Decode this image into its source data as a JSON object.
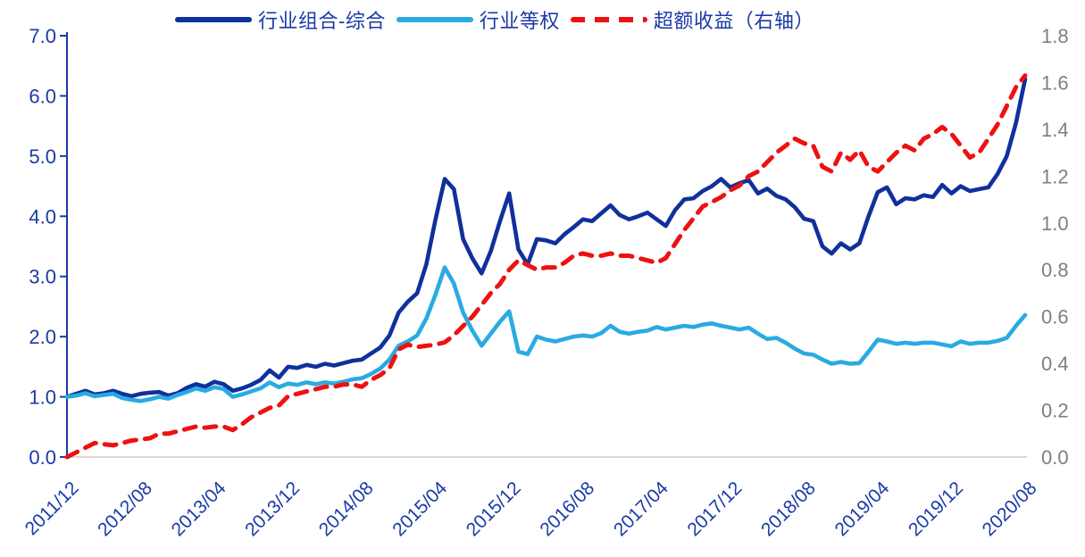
{
  "colors": {
    "series_composite": "#10309c",
    "series_equal_weight": "#29abe2",
    "series_excess_return": "#ee1111",
    "axis_text_blue": "#1b3aa6",
    "axis_line_blue": "#1b3aa6",
    "right_axis_text_gray": "#7f7f7f",
    "baseline_gray": "#d9d9d9",
    "background": "#ffffff"
  },
  "legend": {
    "items": [
      {
        "label": "行业组合-综合",
        "style": "solid"
      },
      {
        "label": "行业等权",
        "style": "solid"
      },
      {
        "label": "超额收益（右轴）",
        "style": "dashed"
      }
    ]
  },
  "chart_data": {
    "type": "line",
    "title": "",
    "xlabel": "",
    "ylabel_left": "",
    "ylabel_right": "",
    "grid": false,
    "legend_position": "top",
    "x_frequency": "monthly",
    "x_start": "2011/12",
    "x_end": "2020/08",
    "x_tick_labels": [
      "2011/12",
      "2012/08",
      "2013/04",
      "2013/12",
      "2014/08",
      "2015/04",
      "2015/12",
      "2016/08",
      "2017/04",
      "2017/12",
      "2018/08",
      "2019/04",
      "2019/12",
      "2020/08"
    ],
    "x_tick_indices": [
      0,
      8,
      16,
      24,
      32,
      40,
      48,
      56,
      64,
      72,
      80,
      88,
      96,
      104
    ],
    "left_axis": {
      "min": 0.0,
      "max": 7.0,
      "step": 1.0,
      "tick_labels": [
        "0.0",
        "1.0",
        "2.0",
        "3.0",
        "4.0",
        "5.0",
        "6.0",
        "7.0"
      ]
    },
    "right_axis": {
      "min": 0.0,
      "max": 1.8,
      "step": 0.2,
      "tick_labels": [
        "0.0",
        "0.2",
        "0.4",
        "0.6",
        "0.8",
        "1.0",
        "1.2",
        "1.4",
        "1.6",
        "1.8"
      ]
    },
    "series": [
      {
        "name": "行业组合-综合",
        "axis": "left",
        "color": "#10309c",
        "style": "solid",
        "values": [
          1.0,
          1.05,
          1.1,
          1.04,
          1.06,
          1.1,
          1.05,
          1.01,
          1.05,
          1.07,
          1.08,
          1.02,
          1.06,
          1.15,
          1.21,
          1.17,
          1.25,
          1.21,
          1.1,
          1.14,
          1.2,
          1.28,
          1.44,
          1.32,
          1.5,
          1.48,
          1.53,
          1.5,
          1.55,
          1.52,
          1.56,
          1.6,
          1.62,
          1.72,
          1.82,
          2.02,
          2.4,
          2.58,
          2.72,
          3.2,
          3.95,
          4.62,
          4.45,
          3.62,
          3.3,
          3.05,
          3.42,
          3.92,
          4.38,
          3.45,
          3.2,
          3.62,
          3.6,
          3.55,
          3.7,
          3.82,
          3.95,
          3.92,
          4.05,
          4.18,
          4.02,
          3.95,
          4.0,
          4.06,
          3.95,
          3.84,
          4.1,
          4.28,
          4.3,
          4.42,
          4.5,
          4.62,
          4.48,
          4.55,
          4.6,
          4.38,
          4.46,
          4.34,
          4.28,
          4.15,
          3.96,
          3.92,
          3.5,
          3.38,
          3.55,
          3.45,
          3.55,
          4.0,
          4.4,
          4.48,
          4.2,
          4.3,
          4.28,
          4.35,
          4.32,
          4.52,
          4.38,
          4.5,
          4.42,
          4.45,
          4.48,
          4.7,
          5.0,
          5.55,
          6.28
        ]
      },
      {
        "name": "行业等权",
        "axis": "left",
        "color": "#29abe2",
        "style": "solid",
        "values": [
          1.0,
          1.02,
          1.06,
          1.01,
          1.03,
          1.05,
          0.98,
          0.95,
          0.93,
          0.96,
          1.0,
          0.97,
          1.03,
          1.08,
          1.14,
          1.1,
          1.16,
          1.13,
          1.0,
          1.04,
          1.09,
          1.14,
          1.24,
          1.16,
          1.22,
          1.2,
          1.24,
          1.21,
          1.24,
          1.22,
          1.25,
          1.29,
          1.31,
          1.38,
          1.47,
          1.62,
          1.85,
          1.92,
          2.02,
          2.3,
          2.7,
          3.15,
          2.88,
          2.4,
          2.1,
          1.85,
          2.05,
          2.25,
          2.42,
          1.75,
          1.71,
          2.0,
          1.95,
          1.92,
          1.96,
          2.0,
          2.02,
          2.0,
          2.06,
          2.18,
          2.08,
          2.05,
          2.08,
          2.1,
          2.16,
          2.12,
          2.15,
          2.18,
          2.16,
          2.2,
          2.22,
          2.18,
          2.15,
          2.12,
          2.15,
          2.05,
          1.96,
          1.98,
          1.9,
          1.8,
          1.72,
          1.7,
          1.62,
          1.55,
          1.58,
          1.55,
          1.56,
          1.75,
          1.95,
          1.92,
          1.88,
          1.9,
          1.88,
          1.9,
          1.9,
          1.87,
          1.84,
          1.92,
          1.88,
          1.9,
          1.9,
          1.93,
          1.98,
          2.18,
          2.36
        ]
      },
      {
        "name": "超额收益（右轴）",
        "axis": "right",
        "color": "#ee1111",
        "style": "dashed",
        "values": [
          0.0,
          0.02,
          0.04,
          0.06,
          0.055,
          0.05,
          0.06,
          0.07,
          0.075,
          0.08,
          0.1,
          0.1,
          0.11,
          0.12,
          0.13,
          0.125,
          0.13,
          0.13,
          0.115,
          0.14,
          0.17,
          0.19,
          0.21,
          0.22,
          0.26,
          0.27,
          0.28,
          0.29,
          0.3,
          0.3,
          0.31,
          0.31,
          0.3,
          0.33,
          0.35,
          0.38,
          0.46,
          0.48,
          0.47,
          0.475,
          0.48,
          0.49,
          0.52,
          0.56,
          0.6,
          0.65,
          0.7,
          0.74,
          0.8,
          0.84,
          0.82,
          0.8,
          0.81,
          0.81,
          0.83,
          0.86,
          0.87,
          0.86,
          0.86,
          0.87,
          0.86,
          0.86,
          0.85,
          0.84,
          0.83,
          0.85,
          0.91,
          0.97,
          1.02,
          1.07,
          1.09,
          1.11,
          1.14,
          1.16,
          1.2,
          1.22,
          1.26,
          1.3,
          1.33,
          1.36,
          1.34,
          1.33,
          1.24,
          1.22,
          1.3,
          1.27,
          1.31,
          1.24,
          1.22,
          1.26,
          1.3,
          1.33,
          1.31,
          1.36,
          1.38,
          1.41,
          1.38,
          1.33,
          1.28,
          1.3,
          1.36,
          1.42,
          1.5,
          1.58,
          1.63
        ]
      }
    ]
  }
}
